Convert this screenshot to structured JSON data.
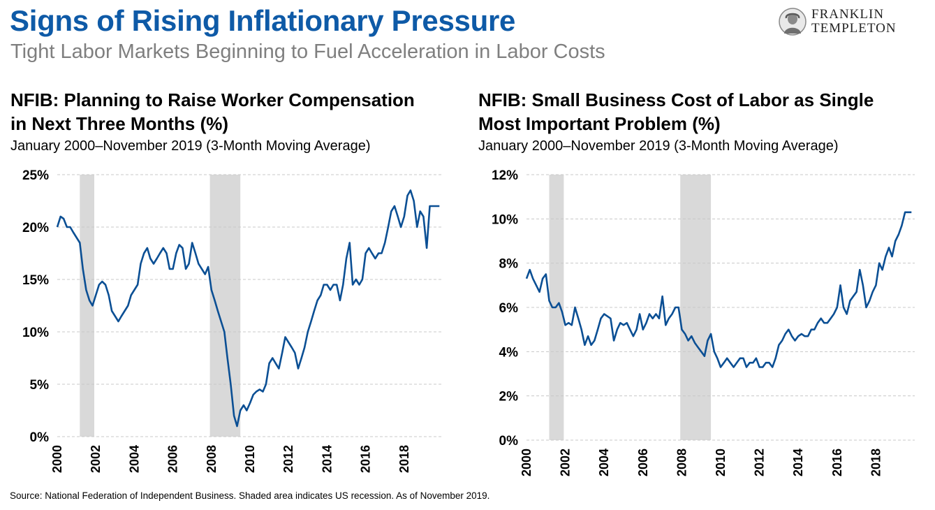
{
  "header": {
    "title": "Signs of Rising Inflationary Pressure",
    "subtitle": "Tight Labor Markets Beginning to Fuel Acceleration in Labor Costs",
    "logo_line1": "FRANKLIN",
    "logo_line2": "TEMPLETON"
  },
  "colors": {
    "title": "#0e5aa7",
    "series": "#0b4f94",
    "recession": "#d9d9d9",
    "grid": "#c8c8c8"
  },
  "source": "Source: National Federation of Independent Business.  Shaded area indicates US recession. As of November 2019.",
  "chart_data": [
    {
      "type": "line",
      "title_line1": "NFIB: Planning to Raise Worker Compensation",
      "title_line2": "in Next Three Months (%)",
      "subtitle": "January 2000–November 2019 (3-Month Moving Average)",
      "xlim": [
        2000,
        2020
      ],
      "ylim": [
        0,
        25
      ],
      "yticks": [
        0,
        5,
        10,
        15,
        20,
        25
      ],
      "ytick_labels": [
        "0%",
        "5%",
        "10%",
        "15%",
        "20%",
        "25%"
      ],
      "xticks": [
        2000,
        2002,
        2004,
        2006,
        2008,
        2010,
        2012,
        2014,
        2016,
        2018
      ],
      "xtick_labels": [
        "2000",
        "2002",
        "2004",
        "2006",
        "2008",
        "2010",
        "2012",
        "2014",
        "2016",
        "2018"
      ],
      "grid": "horizontal dashed",
      "recessions": [
        [
          2001.17,
          2001.92
        ],
        [
          2007.92,
          2009.5
        ]
      ],
      "x": [
        2000.0,
        2000.17,
        2000.33,
        2000.5,
        2000.67,
        2000.83,
        2001.0,
        2001.17,
        2001.33,
        2001.5,
        2001.67,
        2001.83,
        2002.0,
        2002.17,
        2002.33,
        2002.5,
        2002.67,
        2002.83,
        2003.0,
        2003.17,
        2003.33,
        2003.5,
        2003.67,
        2003.83,
        2004.0,
        2004.17,
        2004.33,
        2004.5,
        2004.67,
        2004.83,
        2005.0,
        2005.17,
        2005.33,
        2005.5,
        2005.67,
        2005.83,
        2006.0,
        2006.17,
        2006.33,
        2006.5,
        2006.67,
        2006.83,
        2007.0,
        2007.17,
        2007.33,
        2007.5,
        2007.67,
        2007.83,
        2008.0,
        2008.17,
        2008.33,
        2008.5,
        2008.67,
        2008.83,
        2009.0,
        2009.17,
        2009.33,
        2009.5,
        2009.67,
        2009.83,
        2010.0,
        2010.17,
        2010.33,
        2010.5,
        2010.67,
        2010.83,
        2011.0,
        2011.17,
        2011.33,
        2011.5,
        2011.67,
        2011.83,
        2012.0,
        2012.17,
        2012.33,
        2012.5,
        2012.67,
        2012.83,
        2013.0,
        2013.17,
        2013.33,
        2013.5,
        2013.67,
        2013.83,
        2014.0,
        2014.17,
        2014.33,
        2014.5,
        2014.67,
        2014.83,
        2015.0,
        2015.17,
        2015.33,
        2015.5,
        2015.67,
        2015.83,
        2016.0,
        2016.17,
        2016.33,
        2016.5,
        2016.67,
        2016.83,
        2017.0,
        2017.17,
        2017.33,
        2017.5,
        2017.67,
        2017.83,
        2018.0,
        2018.17,
        2018.33,
        2018.5,
        2018.67,
        2018.83,
        2019.0,
        2019.17,
        2019.33,
        2019.5,
        2019.67,
        2019.83
      ],
      "values": [
        20,
        21,
        20.8,
        20,
        20,
        19.5,
        19,
        18.5,
        16,
        14,
        13,
        12.5,
        13.5,
        14.5,
        14.8,
        14.5,
        13.5,
        12,
        11.5,
        11,
        11.5,
        12,
        12.5,
        13.5,
        14,
        14.5,
        16.5,
        17.5,
        18,
        17,
        16.5,
        17,
        17.5,
        18,
        17.5,
        16,
        16,
        17.5,
        18.3,
        18,
        16,
        16.5,
        18.5,
        17.5,
        16.5,
        16,
        15.5,
        16.2,
        14,
        13,
        12,
        11,
        10,
        7.5,
        5,
        2,
        1,
        2.5,
        3,
        2.5,
        3.2,
        4,
        4.3,
        4.5,
        4.3,
        5,
        7,
        7.5,
        7,
        6.5,
        8,
        9.5,
        9,
        8.5,
        8,
        6.5,
        7.5,
        8.5,
        10,
        11,
        12,
        13,
        13.5,
        14.5,
        14.5,
        14,
        14.5,
        14.5,
        13,
        14.5,
        17,
        18.5,
        14.5,
        15,
        14.5,
        15,
        17.5,
        18,
        17.5,
        17,
        17.5,
        17.5,
        18.5,
        20,
        21.5,
        22,
        21,
        20,
        21,
        23,
        23.5,
        22.5,
        20,
        21.5,
        21,
        18,
        22,
        22,
        22,
        22
      ]
    },
    {
      "type": "line",
      "title_line1": "NFIB: Small Business Cost of Labor as Single",
      "title_line2": "Most Important Problem (%)",
      "subtitle": "January 2000–November 2019 (3-Month Moving Average)",
      "xlim": [
        2000,
        2020
      ],
      "ylim": [
        0,
        12
      ],
      "yticks": [
        0,
        2,
        4,
        6,
        8,
        10,
        12
      ],
      "ytick_labels": [
        "0%",
        "2%",
        "4%",
        "6%",
        "8%",
        "10%",
        "12%"
      ],
      "xticks": [
        2000,
        2002,
        2004,
        2006,
        2008,
        2010,
        2012,
        2014,
        2016,
        2018
      ],
      "xtick_labels": [
        "2000",
        "2002",
        "2004",
        "2006",
        "2008",
        "2010",
        "2012",
        "2014",
        "2016",
        "2018"
      ],
      "grid": "horizontal dashed",
      "recessions": [
        [
          2001.17,
          2001.92
        ],
        [
          2007.92,
          2009.5
        ]
      ],
      "x": [
        2000.0,
        2000.17,
        2000.33,
        2000.5,
        2000.67,
        2000.83,
        2001.0,
        2001.17,
        2001.33,
        2001.5,
        2001.67,
        2001.83,
        2002.0,
        2002.17,
        2002.33,
        2002.5,
        2002.67,
        2002.83,
        2003.0,
        2003.17,
        2003.33,
        2003.5,
        2003.67,
        2003.83,
        2004.0,
        2004.17,
        2004.33,
        2004.5,
        2004.67,
        2004.83,
        2005.0,
        2005.17,
        2005.33,
        2005.5,
        2005.67,
        2005.83,
        2006.0,
        2006.17,
        2006.33,
        2006.5,
        2006.67,
        2006.83,
        2007.0,
        2007.17,
        2007.33,
        2007.5,
        2007.67,
        2007.83,
        2008.0,
        2008.17,
        2008.33,
        2008.5,
        2008.67,
        2008.83,
        2009.0,
        2009.17,
        2009.33,
        2009.5,
        2009.67,
        2009.83,
        2010.0,
        2010.17,
        2010.33,
        2010.5,
        2010.67,
        2010.83,
        2011.0,
        2011.17,
        2011.33,
        2011.5,
        2011.67,
        2011.83,
        2012.0,
        2012.17,
        2012.33,
        2012.5,
        2012.67,
        2012.83,
        2013.0,
        2013.17,
        2013.33,
        2013.5,
        2013.67,
        2013.83,
        2014.0,
        2014.17,
        2014.33,
        2014.5,
        2014.67,
        2014.83,
        2015.0,
        2015.17,
        2015.33,
        2015.5,
        2015.67,
        2015.83,
        2016.0,
        2016.17,
        2016.33,
        2016.5,
        2016.67,
        2016.83,
        2017.0,
        2017.17,
        2017.33,
        2017.5,
        2017.67,
        2017.83,
        2018.0,
        2018.17,
        2018.33,
        2018.5,
        2018.67,
        2018.83,
        2019.0,
        2019.17,
        2019.33,
        2019.5,
        2019.67,
        2019.83
      ],
      "values": [
        7.3,
        7.7,
        7.3,
        7,
        6.7,
        7.3,
        7.5,
        6.3,
        6,
        6,
        6.2,
        5.8,
        5.2,
        5.3,
        5.2,
        6,
        5.5,
        5,
        4.3,
        4.7,
        4.3,
        4.5,
        5,
        5.5,
        5.7,
        5.6,
        5.5,
        4.5,
        5,
        5.3,
        5.2,
        5.3,
        5,
        4.7,
        5,
        5.7,
        5,
        5.3,
        5.7,
        5.5,
        5.7,
        5.5,
        6.5,
        5.2,
        5.5,
        5.7,
        6,
        6,
        5,
        4.8,
        4.5,
        4.7,
        4.4,
        4.2,
        4,
        3.8,
        4.5,
        4.8,
        4,
        3.7,
        3.3,
        3.5,
        3.7,
        3.5,
        3.3,
        3.5,
        3.7,
        3.7,
        3.3,
        3.5,
        3.5,
        3.7,
        3.3,
        3.3,
        3.5,
        3.5,
        3.3,
        3.7,
        4.3,
        4.5,
        4.8,
        5,
        4.7,
        4.5,
        4.7,
        4.8,
        4.7,
        4.7,
        5,
        5,
        5.3,
        5.5,
        5.3,
        5.3,
        5.5,
        5.7,
        6,
        7,
        6,
        5.7,
        6.3,
        6.5,
        6.7,
        7.7,
        7,
        6,
        6.3,
        6.7,
        7,
        8,
        7.7,
        8.3,
        8.7,
        8.3,
        9,
        9.3,
        9.7,
        10.3,
        10.3,
        10.3
      ]
    }
  ]
}
